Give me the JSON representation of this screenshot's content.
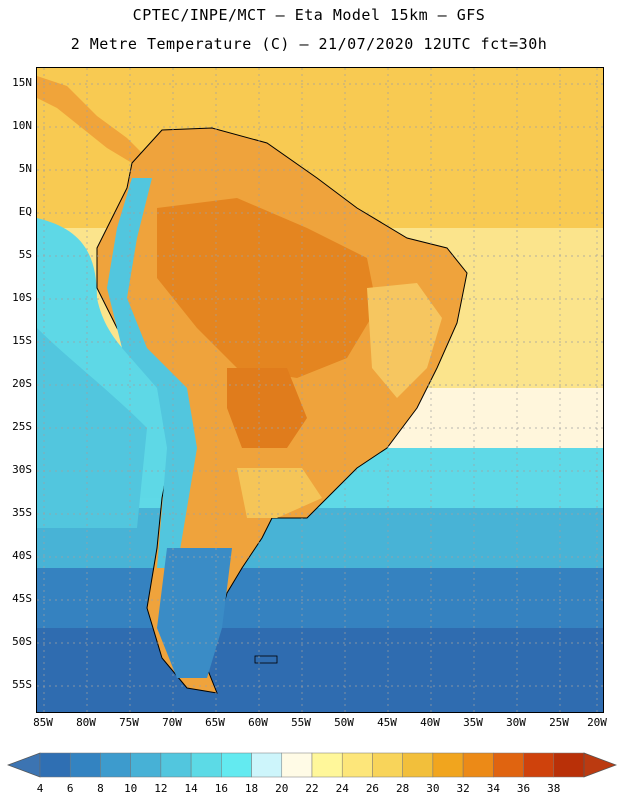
{
  "header": {
    "line1": "CPTEC/INPE/MCT –  Eta Model 15km – GFS",
    "line2": "2 Metre Temperature (C) – 21/07/2020 12UTC fct=30h"
  },
  "map": {
    "lat_labels": [
      "15N",
      "10N",
      "5N",
      "EQ",
      "5S",
      "10S",
      "15S",
      "20S",
      "25S",
      "30S",
      "35S",
      "40S",
      "45S",
      "50S",
      "55S"
    ],
    "lon_labels": [
      "85W",
      "80W",
      "75W",
      "70W",
      "65W",
      "60W",
      "55W",
      "50W",
      "45W",
      "40W",
      "35W",
      "30W",
      "25W",
      "20W"
    ],
    "colors": {
      "ocean_warm": "#f7cb4e",
      "ocean_mid": "#fbe38a",
      "ocean_cool": "#5ed8e6",
      "ocean_cold": "#2f6cb0",
      "land_hot": "#e88a1c",
      "land_warm": "#f1a93a",
      "gridline": "#a9a9a9"
    }
  },
  "colorbar": {
    "labels": [
      "4",
      "6",
      "8",
      "10",
      "12",
      "14",
      "16",
      "18",
      "20",
      "22",
      "24",
      "26",
      "28",
      "30",
      "32",
      "34",
      "36",
      "38"
    ],
    "colors": [
      "#2f6fb3",
      "#3383c1",
      "#3d9bcd",
      "#47b1d6",
      "#52c6de",
      "#5cdae6",
      "#63eaf0",
      "#cdf5fb",
      "#fffbe6",
      "#fff79a",
      "#fde67a",
      "#f8d45a",
      "#f2bf3b",
      "#f1a51e",
      "#ec8a17",
      "#e06410",
      "#cf420c",
      "#b93008"
    ],
    "left_arrow_color": "#3c74b2",
    "right_arrow_color": "#bb3a10"
  }
}
